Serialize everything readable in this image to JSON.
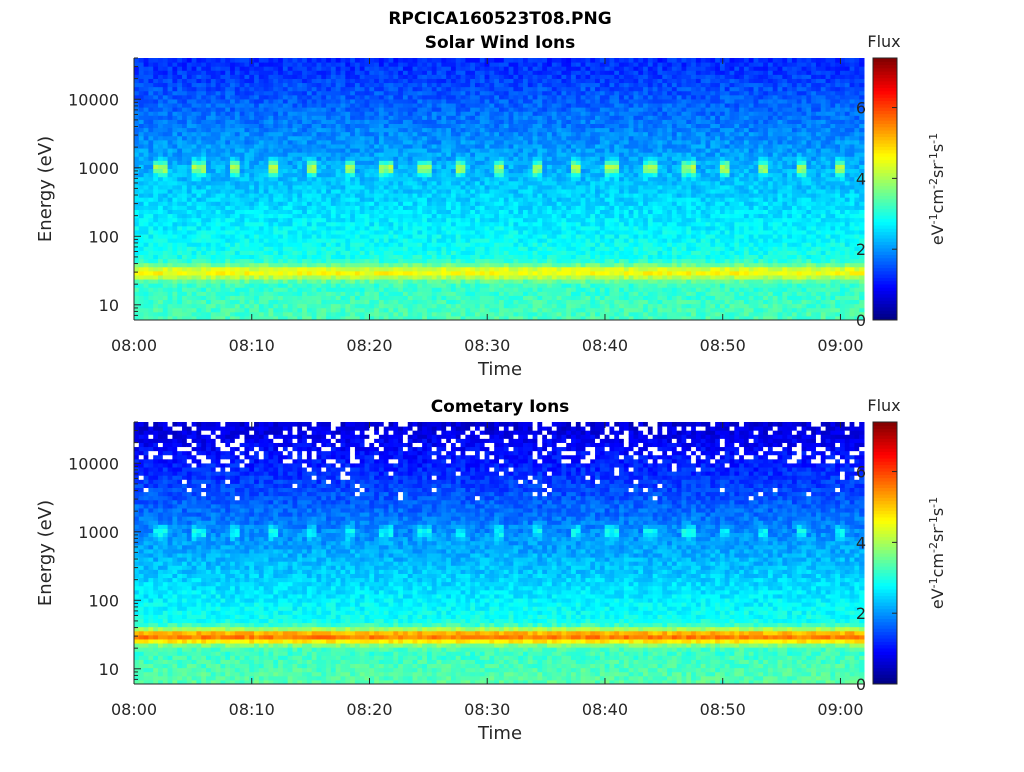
{
  "figure_title": "RPCICA160523T08.PNG",
  "chart_data": [
    {
      "type": "heatmap",
      "title": "Solar Wind Ions",
      "xlabel": "Time",
      "ylabel": "Energy (eV)",
      "x_ticks": [
        "08:00",
        "08:10",
        "08:20",
        "08:30",
        "08:40",
        "08:50",
        "09:00"
      ],
      "x_range": [
        "08:00",
        "09:02"
      ],
      "y_scale": "log",
      "y_ticks": [
        "10",
        "100",
        "1000",
        "10000"
      ],
      "y_range": [
        6,
        40000
      ],
      "colorbar": {
        "title": "Flux",
        "label": "eV-1cm-2sr-1s-1",
        "ticks": [
          "0",
          "2",
          "4",
          "6"
        ],
        "range": [
          0,
          7.4
        ],
        "colormap": "jet"
      },
      "features": [
        {
          "energy_eV": 30,
          "flux": 4.6,
          "description": "band"
        },
        {
          "energy_eV": 1000,
          "flux": 4.0,
          "description": "periodic band"
        }
      ],
      "periodic_band_period_min": 3.2,
      "background_flux": {
        "low_energy": 3.3,
        "high_energy": 1.2
      }
    },
    {
      "type": "heatmap",
      "title": "Cometary Ions",
      "xlabel": "Time",
      "ylabel": "Energy (eV)",
      "x_ticks": [
        "08:00",
        "08:10",
        "08:20",
        "08:30",
        "08:40",
        "08:50",
        "09:00"
      ],
      "x_range": [
        "08:00",
        "09:02"
      ],
      "y_scale": "log",
      "y_ticks": [
        "10",
        "100",
        "1000",
        "10000"
      ],
      "y_range": [
        6,
        40000
      ],
      "colorbar": {
        "title": "Flux",
        "label": "eV-1cm-2sr-1s-1",
        "ticks": [
          "0",
          "2",
          "4",
          "6"
        ],
        "range": [
          0,
          7.4
        ],
        "colormap": "jet"
      },
      "features": [
        {
          "energy_eV": 30,
          "flux": 5.6,
          "description": "band"
        },
        {
          "energy_eV": 1000,
          "flux": 2.8,
          "description": "periodic band"
        }
      ],
      "periodic_band_period_min": 3.2,
      "background_flux": {
        "low_energy": 3.4,
        "high_energy": 0.6
      },
      "empty_bins_above_eV": 3000
    }
  ]
}
